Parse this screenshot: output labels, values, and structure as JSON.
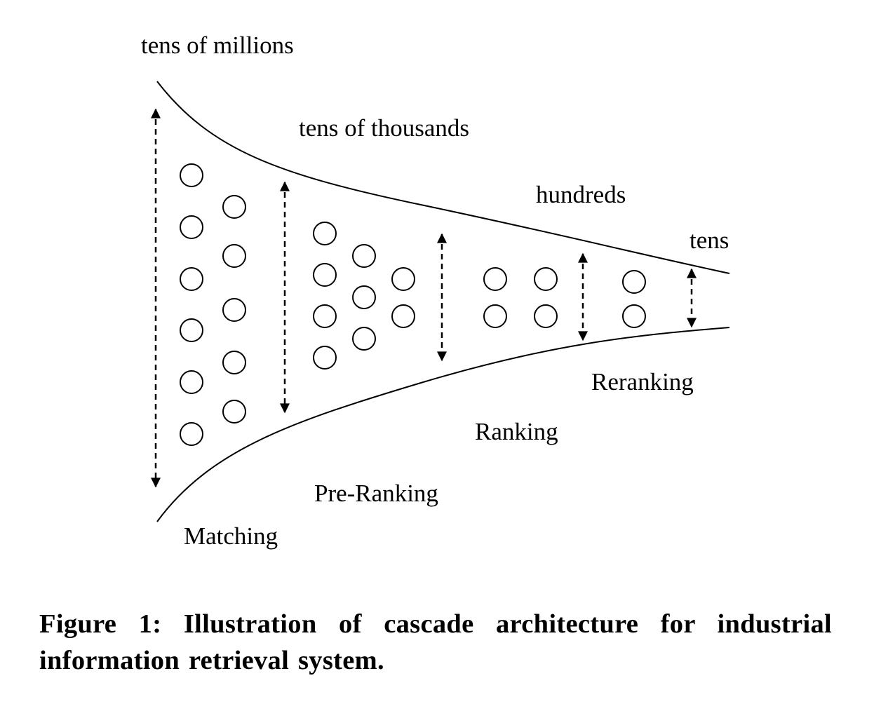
{
  "labels": {
    "tens_of_millions": "tens of millions",
    "tens_of_thousands": "tens of thousands",
    "hundreds": "hundreds",
    "tens": "tens",
    "matching": "Matching",
    "pre_ranking": "Pre-Ranking",
    "ranking": "Ranking",
    "reranking": "Reranking"
  },
  "caption": "Figure 1: Illustration of cascade architecture for industrial information retrieval system."
}
